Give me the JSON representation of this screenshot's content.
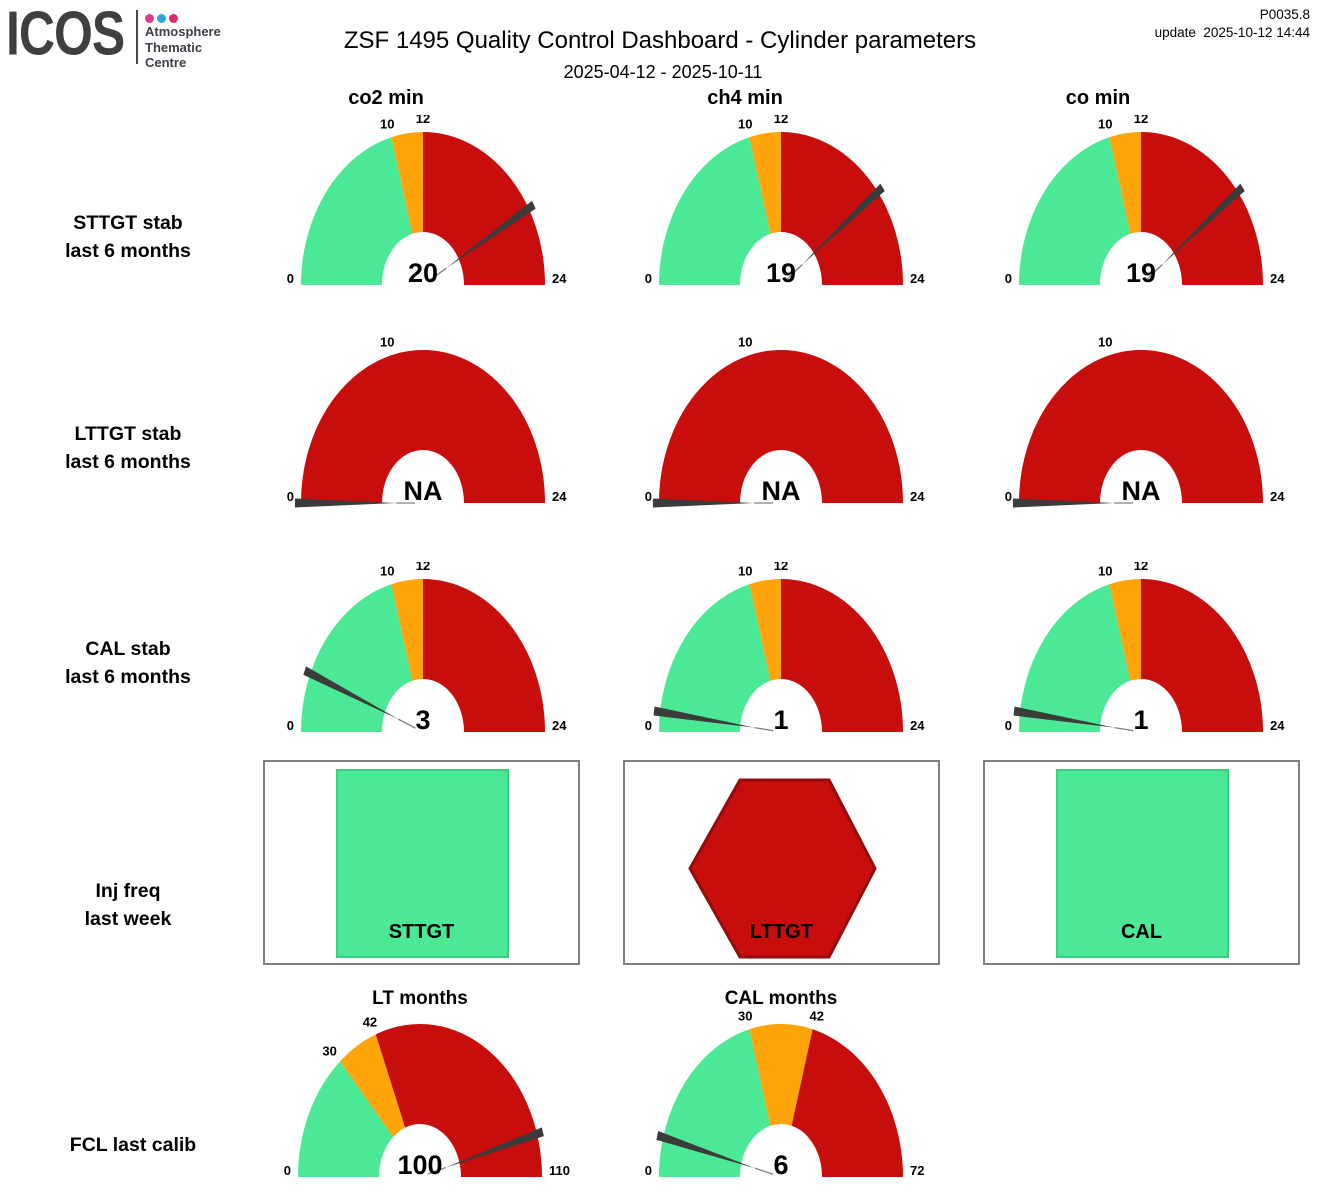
{
  "header": {
    "logo_text": "ICOS",
    "logo_sub": [
      "Atmosphere",
      "Thematic",
      "Centre"
    ],
    "logo_dot_colors": [
      "#E23A8C",
      "#2BA5DB",
      "#DC2A72"
    ],
    "title": "ZSF 1495 Quality Control Dashboard - Cylinder parameters",
    "report_id": "P0035.8",
    "update_label": "update",
    "update_time": "2025-10-12 14:44",
    "date_range": "2025-04-12 - 2025-10-11"
  },
  "columns": [
    "co2 min",
    "ch4 min",
    "co min"
  ],
  "rows": [
    {
      "line1": "STTGT stab",
      "line2": "last 6 months"
    },
    {
      "line1": "LTTGT stab",
      "line2": "last 6 months"
    },
    {
      "line1": "CAL stab",
      "line2": "last 6 months"
    },
    {
      "line1": "Inj freq",
      "line2": "last week"
    },
    {
      "line1": "FCL last calib",
      "line2": ""
    }
  ],
  "colors": {
    "green": "#4BE896",
    "orange": "#FFA40A",
    "red": "#C80D0D",
    "needle": "#3B3B3B",
    "needle_hairline": "#808080",
    "square_border": "#3BCE83",
    "hexagon_border": "#930B0B",
    "panel_border": "#808080",
    "logo_gray": "#3F3F3F"
  },
  "inj_freq": {
    "panels": [
      {
        "label": "STTGT",
        "shape": "square",
        "status_color": "green"
      },
      {
        "label": "LTTGT",
        "shape": "hexagon",
        "status_color": "red"
      },
      {
        "label": "CAL",
        "shape": "square",
        "status_color": "green"
      }
    ]
  },
  "chart_data": [
    {
      "type": "gauge",
      "name": "sttgt-stab-co2",
      "row": "STTGT stab last 6 months",
      "column": "co2 min",
      "value": "20",
      "needle_value": 20,
      "min": 0,
      "max": 24,
      "ticks": [
        "0",
        "10",
        "12",
        "24"
      ],
      "tick_values": [
        0,
        10,
        12,
        24
      ],
      "bands": [
        {
          "from": 0,
          "to": 10,
          "color": "green"
        },
        {
          "from": 10,
          "to": 12,
          "color": "orange"
        },
        {
          "from": 12,
          "to": 24,
          "color": "red"
        }
      ]
    },
    {
      "type": "gauge",
      "name": "sttgt-stab-ch4",
      "row": "STTGT stab last 6 months",
      "column": "ch4 min",
      "value": "19",
      "needle_value": 19,
      "min": 0,
      "max": 24,
      "ticks": [
        "0",
        "10",
        "12",
        "24"
      ],
      "tick_values": [
        0,
        10,
        12,
        24
      ],
      "bands": [
        {
          "from": 0,
          "to": 10,
          "color": "green"
        },
        {
          "from": 10,
          "to": 12,
          "color": "orange"
        },
        {
          "from": 12,
          "to": 24,
          "color": "red"
        }
      ]
    },
    {
      "type": "gauge",
      "name": "sttgt-stab-co",
      "row": "STTGT stab last 6 months",
      "column": "co min",
      "value": "19",
      "needle_value": 19,
      "min": 0,
      "max": 24,
      "ticks": [
        "0",
        "10",
        "12",
        "24"
      ],
      "tick_values": [
        0,
        10,
        12,
        24
      ],
      "bands": [
        {
          "from": 0,
          "to": 10,
          "color": "green"
        },
        {
          "from": 10,
          "to": 12,
          "color": "orange"
        },
        {
          "from": 12,
          "to": 24,
          "color": "red"
        }
      ]
    },
    {
      "type": "gauge",
      "name": "lttgt-stab-co2",
      "row": "LTTGT stab last 6 months",
      "column": "co2 min",
      "value": "NA",
      "needle_value": 0,
      "min": 0,
      "max": 24,
      "ticks": [
        "0",
        "10",
        "24"
      ],
      "tick_values": [
        0,
        10,
        24
      ],
      "bands": [
        {
          "from": 0,
          "to": 24,
          "color": "red"
        }
      ]
    },
    {
      "type": "gauge",
      "name": "lttgt-stab-ch4",
      "row": "LTTGT stab last 6 months",
      "column": "ch4 min",
      "value": "NA",
      "needle_value": 0,
      "min": 0,
      "max": 24,
      "ticks": [
        "0",
        "10",
        "24"
      ],
      "tick_values": [
        0,
        10,
        24
      ],
      "bands": [
        {
          "from": 0,
          "to": 24,
          "color": "red"
        }
      ]
    },
    {
      "type": "gauge",
      "name": "lttgt-stab-co",
      "row": "LTTGT stab last 6 months",
      "column": "co min",
      "value": "NA",
      "needle_value": 0,
      "min": 0,
      "max": 24,
      "ticks": [
        "0",
        "10",
        "24"
      ],
      "tick_values": [
        0,
        10,
        24
      ],
      "bands": [
        {
          "from": 0,
          "to": 24,
          "color": "red"
        }
      ]
    },
    {
      "type": "gauge",
      "name": "cal-stab-co2",
      "row": "CAL stab last 6 months",
      "column": "co2 min",
      "value": "3",
      "needle_value": 3,
      "min": 0,
      "max": 24,
      "ticks": [
        "0",
        "10",
        "12",
        "24"
      ],
      "tick_values": [
        0,
        10,
        12,
        24
      ],
      "bands": [
        {
          "from": 0,
          "to": 10,
          "color": "green"
        },
        {
          "from": 10,
          "to": 12,
          "color": "orange"
        },
        {
          "from": 12,
          "to": 24,
          "color": "red"
        }
      ]
    },
    {
      "type": "gauge",
      "name": "cal-stab-ch4",
      "row": "CAL stab last 6 months",
      "column": "ch4 min",
      "value": "1",
      "needle_value": 1,
      "min": 0,
      "max": 24,
      "ticks": [
        "0",
        "10",
        "12",
        "24"
      ],
      "tick_values": [
        0,
        10,
        12,
        24
      ],
      "bands": [
        {
          "from": 0,
          "to": 10,
          "color": "green"
        },
        {
          "from": 10,
          "to": 12,
          "color": "orange"
        },
        {
          "from": 12,
          "to": 24,
          "color": "red"
        }
      ]
    },
    {
      "type": "gauge",
      "name": "cal-stab-co",
      "row": "CAL stab last 6 months",
      "column": "co min",
      "value": "1",
      "needle_value": 1,
      "min": 0,
      "max": 24,
      "ticks": [
        "0",
        "10",
        "12",
        "24"
      ],
      "tick_values": [
        0,
        10,
        12,
        24
      ],
      "bands": [
        {
          "from": 0,
          "to": 10,
          "color": "green"
        },
        {
          "from": 10,
          "to": 12,
          "color": "orange"
        },
        {
          "from": 12,
          "to": 24,
          "color": "red"
        }
      ]
    },
    {
      "type": "gauge",
      "name": "fcl-lt-months",
      "row": "FCL last calib",
      "title": "LT months",
      "value": "100",
      "needle_value": 100,
      "min": 0,
      "max": 110,
      "ticks": [
        "0",
        "30",
        "42",
        "110"
      ],
      "tick_values": [
        0,
        30,
        42,
        110
      ],
      "bands": [
        {
          "from": 0,
          "to": 30,
          "color": "green"
        },
        {
          "from": 30,
          "to": 42,
          "color": "orange"
        },
        {
          "from": 42,
          "to": 110,
          "color": "red"
        }
      ]
    },
    {
      "type": "gauge",
      "name": "fcl-cal-months",
      "row": "FCL last calib",
      "title": "CAL months",
      "value": "6",
      "needle_value": 6,
      "min": 0,
      "max": 72,
      "ticks": [
        "0",
        "30",
        "42",
        "72"
      ],
      "tick_values": [
        0,
        30,
        42,
        72
      ],
      "bands": [
        {
          "from": 0,
          "to": 30,
          "color": "green"
        },
        {
          "from": 30,
          "to": 42,
          "color": "orange"
        },
        {
          "from": 42,
          "to": 72,
          "color": "red"
        }
      ]
    }
  ]
}
